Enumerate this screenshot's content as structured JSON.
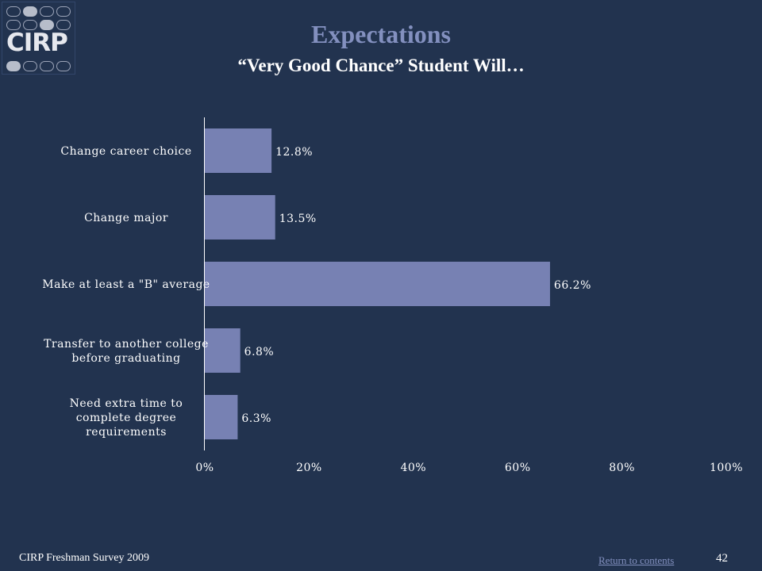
{
  "title": "Expectations",
  "subtitle": "“Very Good Chance” Student Will…",
  "logo_text": "CIRP",
  "footer": {
    "survey": "CIRP Freshman Survey 2009",
    "link": "Return to contents",
    "page": "42"
  },
  "colors": {
    "background": "#22334f",
    "bar": "#7781b3",
    "title": "#8390bf"
  },
  "chart_data": {
    "type": "bar",
    "orientation": "horizontal",
    "categories": [
      [
        "Change career choice"
      ],
      [
        "Change major"
      ],
      [
        "Make at least a \"B\" average"
      ],
      [
        "Transfer to another college",
        "before graduating"
      ],
      [
        "Need extra time to",
        "complete degree",
        "requirements"
      ]
    ],
    "values": [
      12.8,
      13.5,
      66.2,
      6.8,
      6.3
    ],
    "data_labels": [
      "12.8%",
      "13.5%",
      "66.2%",
      "6.8%",
      "6.3%"
    ],
    "xlim": [
      0,
      100
    ],
    "x_ticks": [
      0,
      20,
      40,
      60,
      80,
      100
    ],
    "x_tick_labels": [
      "0%",
      "20%",
      "40%",
      "60%",
      "80%",
      "100%"
    ],
    "grid": false,
    "legend": "none"
  }
}
